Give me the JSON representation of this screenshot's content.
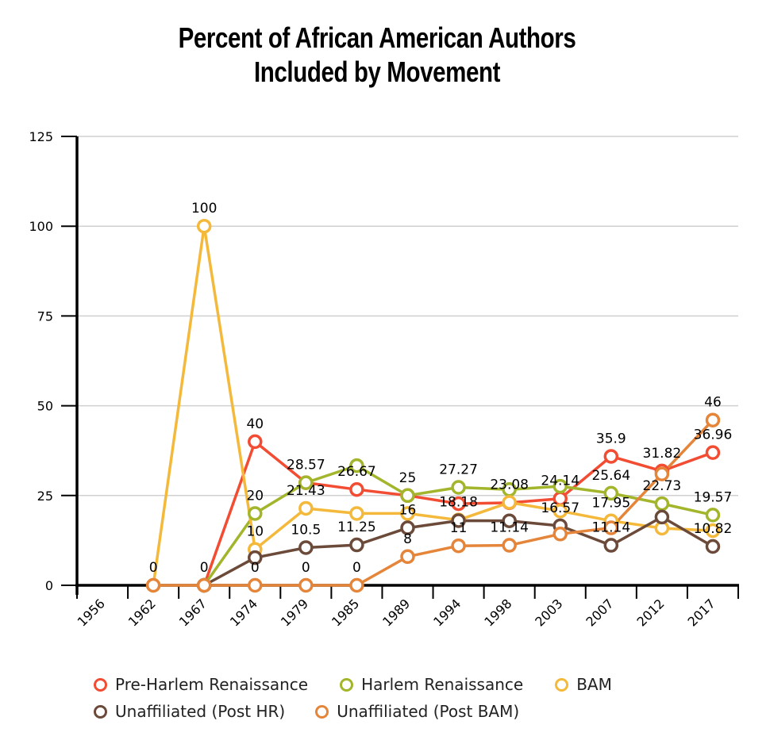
{
  "chart_data": {
    "type": "line",
    "title": [
      "Percent of African American Authors",
      "Included by Movement"
    ],
    "xlabel": "",
    "ylabel": "",
    "ylim": [
      0,
      125
    ],
    "yticks": [
      0,
      25,
      50,
      75,
      100,
      125
    ],
    "grid": true,
    "legend_position": "bottom",
    "categories": [
      "1956",
      "1962",
      "1967",
      "1974",
      "1979",
      "1985",
      "1989",
      "1994",
      "1998",
      "2003",
      "2007",
      "2012",
      "2017"
    ],
    "series": [
      {
        "name": "Pre-Harlem Renaissance",
        "color": "#F24C33",
        "values": [
          null,
          null,
          0,
          40,
          28.57,
          26.67,
          25,
          22.73,
          23,
          24.14,
          35.9,
          31.82,
          36.96
        ]
      },
      {
        "name": "Harlem Renaissance",
        "color": "#A3B52B",
        "values": [
          null,
          null,
          0,
          20,
          28.57,
          33.33,
          25,
          27.27,
          26.67,
          27.59,
          25.64,
          22.73,
          19.57
        ]
      },
      {
        "name": "BAM",
        "color": "#F4B93A",
        "values": [
          null,
          0,
          100,
          10,
          21.43,
          20,
          20,
          18.18,
          23.08,
          20.69,
          17.95,
          15.91,
          15.22
        ]
      },
      {
        "name": "Unaffiliated (Post HR)",
        "color": "#6B4A3A",
        "values": [
          null,
          null,
          0,
          7.69,
          10.5,
          11.25,
          16,
          18,
          17.95,
          16.57,
          11.14,
          19.01,
          10.82
        ]
      },
      {
        "name": "Unaffiliated (Post BAM)",
        "color": "#E5853A",
        "values": [
          null,
          0,
          0,
          0,
          0,
          0,
          8,
          11,
          11.14,
          14.29,
          16,
          31,
          46
        ]
      }
    ],
    "data_labels": [
      {
        "text": "0",
        "series": 4,
        "index": 1
      },
      {
        "text": "100",
        "series": 2,
        "index": 2
      },
      {
        "text": "0",
        "series": 4,
        "index": 2
      },
      {
        "text": "40",
        "series": 0,
        "index": 3
      },
      {
        "text": "20",
        "series": 1,
        "index": 3
      },
      {
        "text": "10",
        "series": 2,
        "index": 3
      },
      {
        "text": "0",
        "series": 4,
        "index": 3
      },
      {
        "text": "28.57",
        "series": 1,
        "index": 4
      },
      {
        "text": "21.43",
        "series": 2,
        "index": 4
      },
      {
        "text": "10.5",
        "series": 3,
        "index": 4
      },
      {
        "text": "0",
        "series": 4,
        "index": 4
      },
      {
        "text": "26.67",
        "series": 0,
        "index": 5
      },
      {
        "text": "11.25",
        "series": 3,
        "index": 5
      },
      {
        "text": "0",
        "series": 4,
        "index": 5
      },
      {
        "text": "25",
        "series": 1,
        "index": 6
      },
      {
        "text": "16",
        "series": 3,
        "index": 6
      },
      {
        "text": "8",
        "series": 4,
        "index": 6
      },
      {
        "text": "27.27",
        "series": 1,
        "index": 7
      },
      {
        "text": "18.18",
        "series": 2,
        "index": 7
      },
      {
        "text": "11",
        "series": 4,
        "index": 7
      },
      {
        "text": "23.08",
        "series": 2,
        "index": 8
      },
      {
        "text": "11.14",
        "series": 4,
        "index": 8
      },
      {
        "text": "24.14",
        "series": 0,
        "index": 9
      },
      {
        "text": "16.57",
        "series": 3,
        "index": 9
      },
      {
        "text": "35.9",
        "series": 0,
        "index": 10
      },
      {
        "text": "25.64",
        "series": 1,
        "index": 10
      },
      {
        "text": "17.95",
        "series": 2,
        "index": 10
      },
      {
        "text": "11.14",
        "series": 3,
        "index": 10
      },
      {
        "text": "31.82",
        "series": 0,
        "index": 11
      },
      {
        "text": "22.73",
        "series": 1,
        "index": 11
      },
      {
        "text": "46",
        "series": 4,
        "index": 12
      },
      {
        "text": "36.96",
        "series": 0,
        "index": 12
      },
      {
        "text": "19.57",
        "series": 1,
        "index": 12
      },
      {
        "text": "10.82",
        "series": 3,
        "index": 12
      }
    ]
  }
}
